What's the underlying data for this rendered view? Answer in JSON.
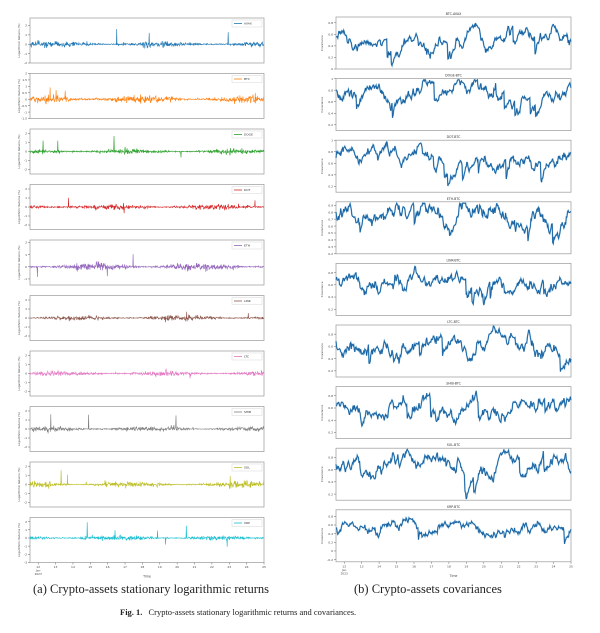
{
  "captions": {
    "a": "(a) Crypto-assets stationary logarithmic returns",
    "b": "(b) Crypto-assets covariances",
    "fig_label": "Fig. 1.",
    "fig_text": "Crypto-assets stationary logarithmic returns and covariances."
  },
  "chart_data": [
    {
      "type": "line",
      "panel": "a",
      "ylabel": "Logarithmic Returns (%)",
      "xlabel": "Time",
      "xticks": [
        "12",
        "13",
        "14",
        "15",
        "16",
        "17",
        "18",
        "19",
        "20",
        "21",
        "22",
        "23",
        "24",
        "25"
      ],
      "xtick_sub": [
        "Jan",
        "2023"
      ],
      "grid": false,
      "legend_placement": "top-right",
      "series": [
        {
          "name": "AVAX",
          "color": "#1f77b4",
          "yticks": [
            -2,
            -1,
            0,
            1,
            2
          ],
          "ylim": [
            -2,
            2.8
          ]
        },
        {
          "name": "BTC",
          "color": "#ff7f0e",
          "yticks": [
            -1.5,
            -1.0,
            -0.5,
            0.0,
            0.5,
            1.0,
            1.5,
            2.0
          ],
          "ylim": [
            -1.5,
            2.0
          ]
        },
        {
          "name": "DOGE",
          "color": "#2ca02c",
          "yticks": [
            -2,
            -1,
            0,
            1,
            2
          ],
          "ylim": [
            -2.5,
            2.5
          ]
        },
        {
          "name": "DOT",
          "color": "#d62728",
          "yticks": [
            -2,
            -1,
            0,
            1,
            2
          ],
          "ylim": [
            -2.5,
            2.5
          ]
        },
        {
          "name": "ETH",
          "color": "#9467bd",
          "yticks": [
            -1,
            0,
            1,
            2
          ],
          "ylim": [
            -1.5,
            2.2
          ]
        },
        {
          "name": "LINK",
          "color": "#8c564b",
          "yticks": [
            -2,
            -1,
            0,
            1,
            2
          ],
          "ylim": [
            -2.5,
            2.5
          ]
        },
        {
          "name": "LTC",
          "color": "#e377c2",
          "yticks": [
            -2,
            -1,
            0,
            1,
            2
          ],
          "ylim": [
            -2.5,
            2.5
          ]
        },
        {
          "name": "SHIB",
          "color": "#7f7f7f",
          "yticks": [
            -2,
            -1,
            0,
            1,
            2
          ],
          "ylim": [
            -2.5,
            2.5
          ]
        },
        {
          "name": "SOL",
          "color": "#bcbd22",
          "yticks": [
            -2,
            -1,
            0,
            1,
            2
          ],
          "ylim": [
            -2.5,
            2.5
          ]
        },
        {
          "name": "XRP",
          "color": "#17becf",
          "yticks": [
            -3,
            -2,
            -1,
            0,
            1,
            2
          ],
          "ylim": [
            -3,
            2.5
          ]
        }
      ]
    },
    {
      "type": "line",
      "panel": "b",
      "ylabel": "Covariance",
      "xlabel": "Time",
      "xticks": [
        "12",
        "13",
        "14",
        "15",
        "16",
        "17",
        "18",
        "19",
        "20",
        "21",
        "22",
        "23",
        "24",
        "25"
      ],
      "xtick_sub": [
        "Jan",
        "2023"
      ],
      "grid": false,
      "color": "#1a5f9e",
      "series": [
        {
          "name": "BTC-AVAX",
          "yticks": [
            0.0,
            0.2,
            0.4,
            0.6,
            0.8
          ],
          "ylim": [
            0.0,
            0.9
          ],
          "mean": 0.6
        },
        {
          "name": "DOGE-BTC",
          "yticks": [
            0.2,
            0.4,
            0.6,
            0.8,
            1.0
          ],
          "ylim": [
            0.1,
            1.0
          ],
          "mean": 0.75
        },
        {
          "name": "DOT-BTC",
          "yticks": [
            0.2,
            0.4,
            0.6,
            0.8,
            1.0
          ],
          "ylim": [
            0.1,
            1.0
          ],
          "mean": 0.7
        },
        {
          "name": "ETH-BTC",
          "yticks": [
            0.2,
            0.3,
            0.4,
            0.5,
            0.6,
            0.7,
            0.8,
            0.9
          ],
          "ylim": [
            0.2,
            0.95
          ],
          "mean": 0.78
        },
        {
          "name": "LINK-BTC",
          "yticks": [
            0.2,
            0.4,
            0.6,
            0.8
          ],
          "ylim": [
            0.1,
            0.95
          ],
          "mean": 0.65
        },
        {
          "name": "LTC-BTC",
          "yticks": [
            0.2,
            0.4,
            0.6,
            0.8
          ],
          "ylim": [
            0.1,
            0.95
          ],
          "mean": 0.65
        },
        {
          "name": "SHIB-BTC",
          "yticks": [
            0.2,
            0.4,
            0.6,
            0.8
          ],
          "ylim": [
            0.1,
            0.95
          ],
          "mean": 0.65
        },
        {
          "name": "SOL-BTC",
          "yticks": [
            0.2,
            0.4,
            0.6,
            0.8
          ],
          "ylim": [
            0.1,
            0.95
          ],
          "mean": 0.7
        },
        {
          "name": "XRP-BTC",
          "yticks": [
            -0.2,
            0.0,
            0.2,
            0.4,
            0.6,
            0.8
          ],
          "ylim": [
            -0.25,
            0.95
          ],
          "mean": 0.5
        }
      ]
    }
  ]
}
